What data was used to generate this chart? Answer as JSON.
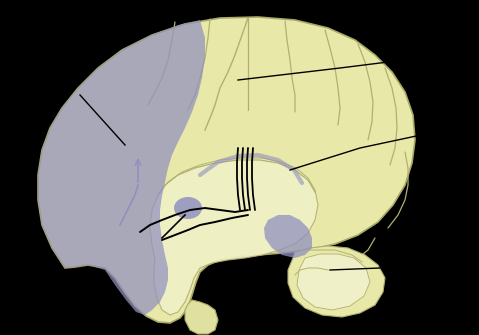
{
  "bg": "#000000",
  "brain_fill": "#e8e8a8",
  "brain_edge": "#a8a868",
  "inner_fill": "#f0f0c8",
  "sulci_color": "#b0b070",
  "purple": "#9090c0",
  "purple_light": "#a8a8d0",
  "cerebellum_fill": "#f0f0c8",
  "black": "#000000",
  "brainstem_fill": "#e0e0a0"
}
